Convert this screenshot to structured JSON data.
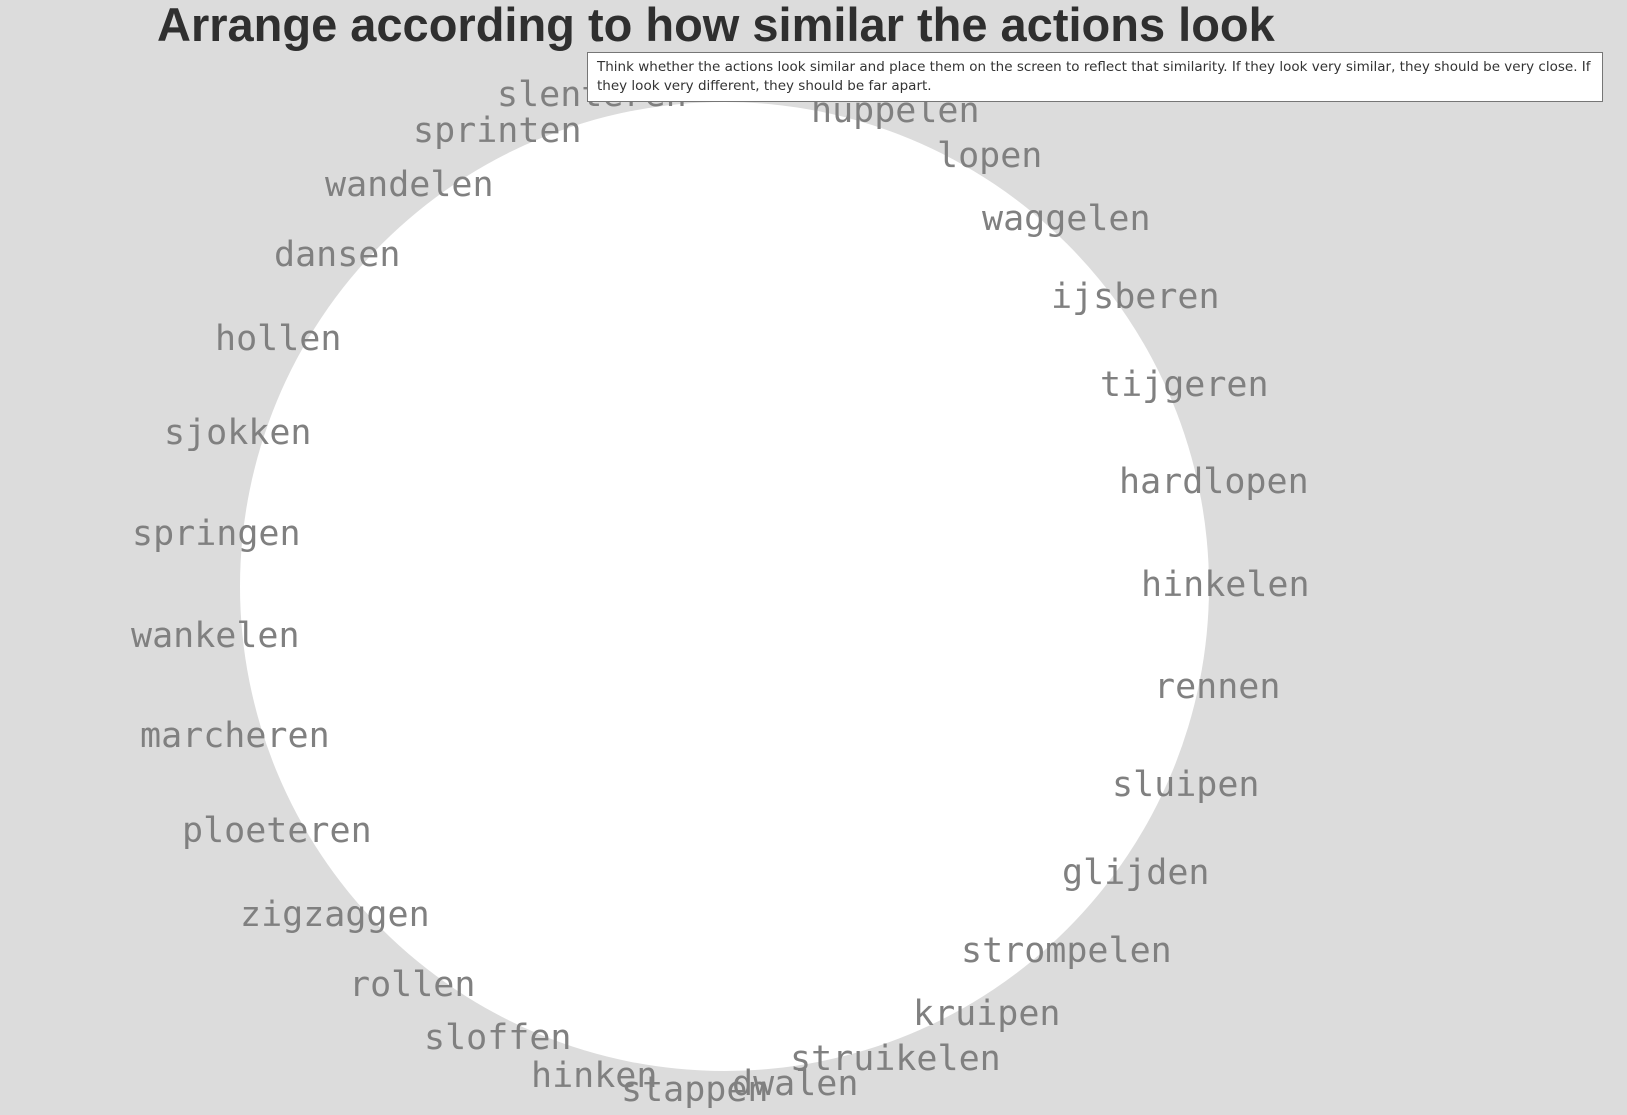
{
  "title": "Arrange according to how similar the actions look",
  "instructions": "Think whether the actions look similar and place them on the screen to reflect that similarity. If they look very similar, they should be very close. If they look very different, they should be far apart.",
  "words": [
    "slenteren",
    "huppelen",
    "sprinten",
    "lopen",
    "wandelen",
    "waggelen",
    "dansen",
    "ijsberen",
    "hollen",
    "tijgeren",
    "sjokken",
    "hardlopen",
    "springen",
    "hinkelen",
    "wankelen",
    "rennen",
    "marcheren",
    "sluipen",
    "ploeteren",
    "glijden",
    "zigzaggen",
    "strompelen",
    "rollen",
    "kruipen",
    "sloffen",
    "struikelen",
    "hinken",
    "dwalen",
    "stappen"
  ],
  "colors": {
    "background": "#dcdcdc",
    "arena": "#ffffff",
    "word": "#808080",
    "title": "#2f2f2f"
  }
}
